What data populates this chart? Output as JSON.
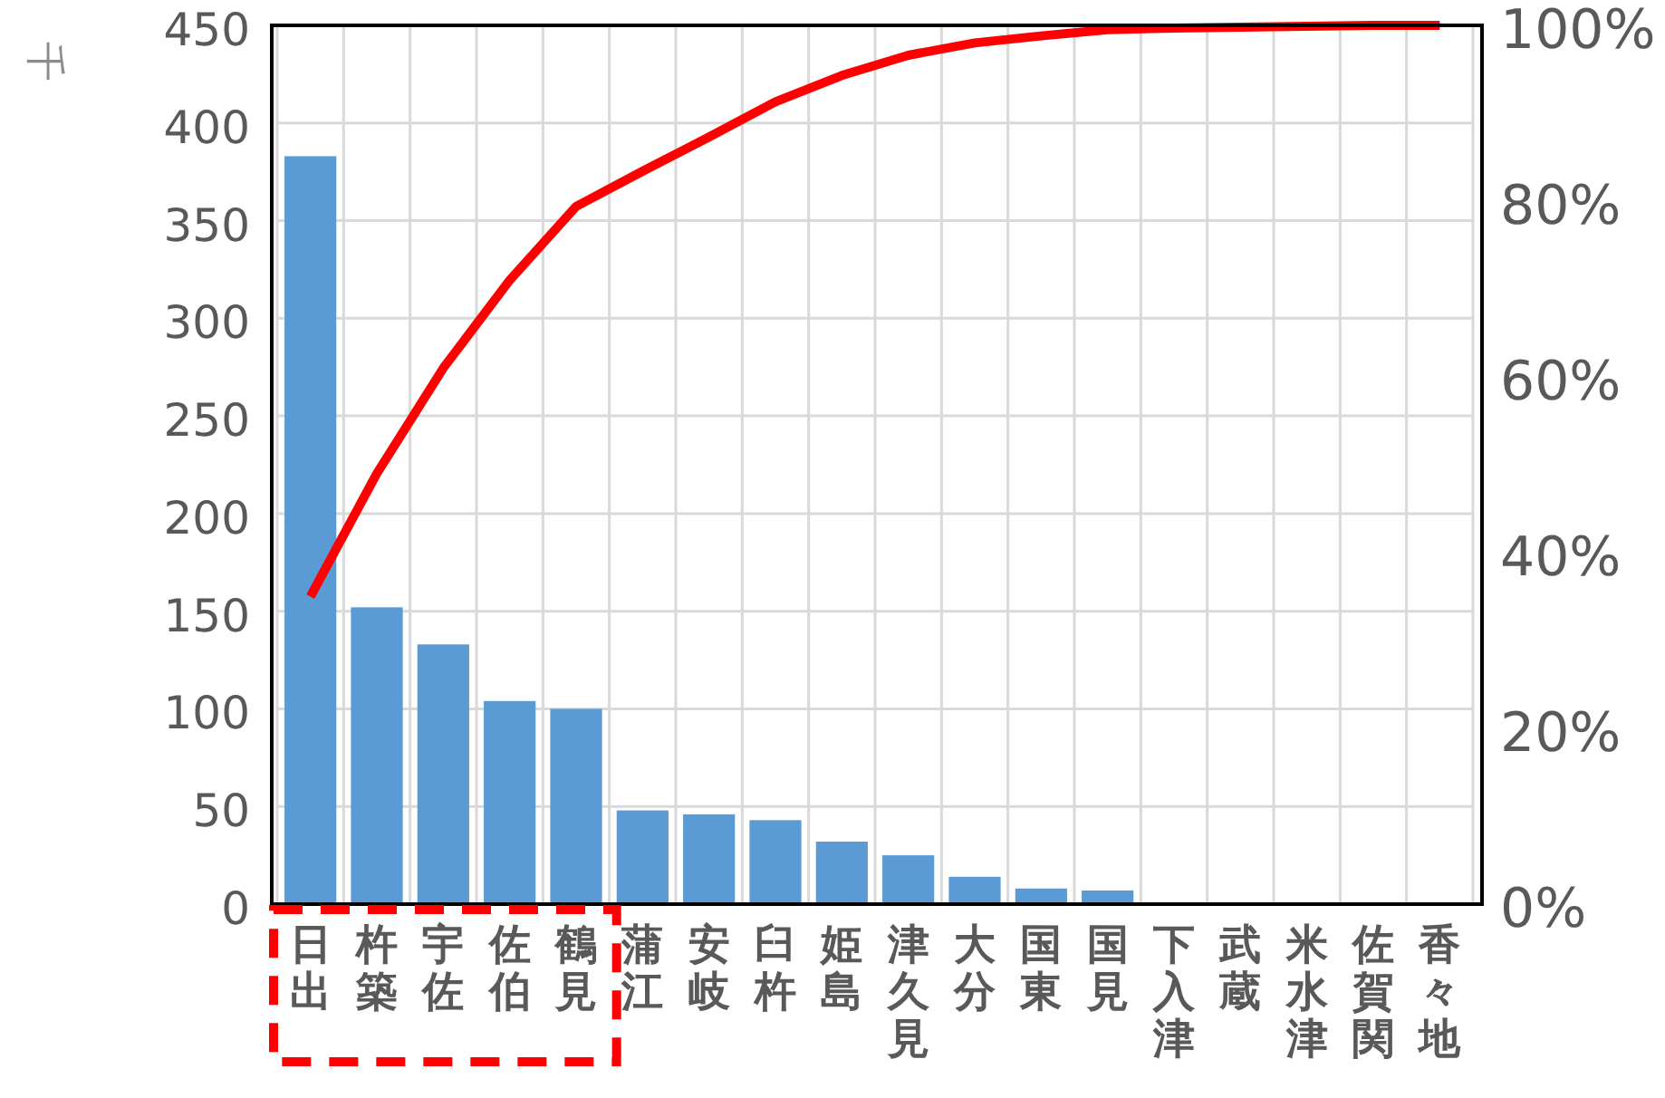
{
  "chart_data": {
    "type": "bar",
    "ylabel": "千",
    "categories": [
      "日出",
      "杵築",
      "宇佐",
      "佐伯",
      "鶴見",
      "蒲江",
      "安岐",
      "臼杵",
      "姫島",
      "津久見",
      "大分",
      "国東",
      "国見",
      "下入津",
      "武蔵",
      "米水津",
      "佐賀関",
      "香々地"
    ],
    "series": [
      {
        "color": "#5b9bd5",
        "values": [
          383,
          152,
          133,
          104,
          100,
          48,
          46,
          43,
          32,
          25,
          14,
          8,
          7,
          0,
          0,
          0,
          0,
          0
        ]
      },
      {
        "type": "line",
        "axis": "y2",
        "color": "#ff0000",
        "marker": "none",
        "line_style": "solid",
        "values": [
          35,
          49,
          61,
          71,
          79.4,
          83.4,
          87.3,
          91.3,
          94.3,
          96.6,
          98.0,
          98.8,
          99.5,
          99.7,
          99.8,
          99.9,
          100,
          100
        ]
      }
    ],
    "ylim": [
      0,
      450
    ],
    "yticks": [
      0,
      50,
      100,
      150,
      200,
      250,
      300,
      350,
      400,
      450
    ],
    "y2lim": [
      0,
      100
    ],
    "y2ticks": [
      {
        "value": 0,
        "label": "0%"
      },
      {
        "value": 20,
        "label": "20%"
      },
      {
        "value": 40,
        "label": "40%"
      },
      {
        "value": 60,
        "label": "60%"
      },
      {
        "value": 80,
        "label": "80%"
      },
      {
        "value": 100,
        "label": "100%"
      }
    ],
    "grid": true,
    "legend": false
  }
}
